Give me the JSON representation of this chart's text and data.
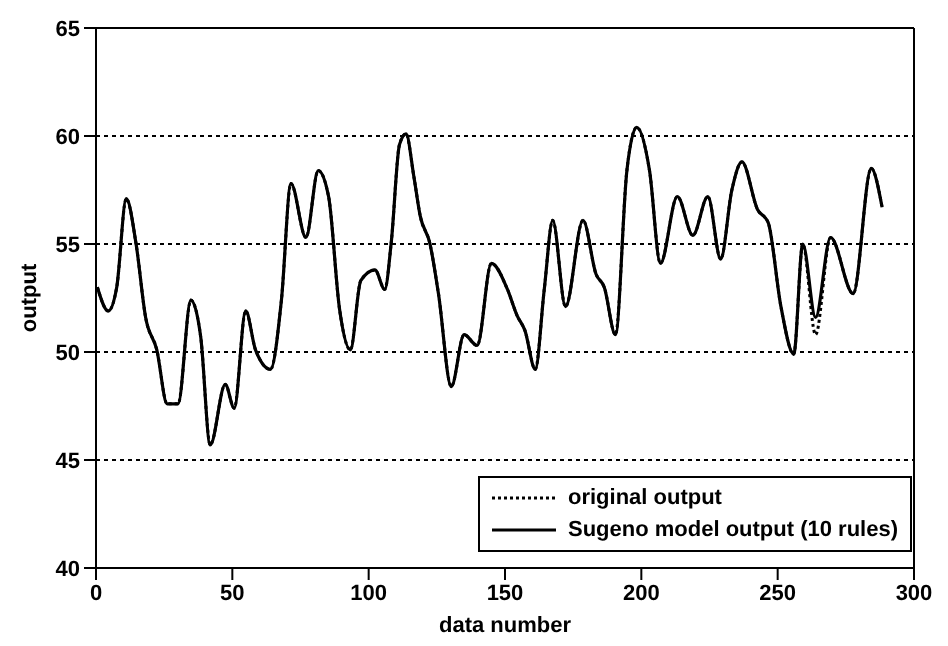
{
  "chart_data": {
    "type": "line",
    "xlabel": "data number",
    "ylabel": "output",
    "x": [
      0.5,
      4.5,
      7.6,
      11.1,
      14.7,
      18.2,
      22.3,
      26.1,
      30.1,
      34.8,
      38.4,
      41.9,
      47.4,
      50.7,
      54.9,
      58.5,
      64,
      68,
      71.5,
      77,
      81.5,
      85.3,
      89.3,
      93.3,
      97.1,
      102.3,
      105.9,
      108.3,
      111.3,
      113.7,
      116.6,
      118.9,
      122.5,
      125.6,
      130.3,
      135,
      139.8,
      145,
      150.9,
      154.4,
      157.3,
      161.1,
      164.4,
      167.5,
      172.2,
      178.6,
      183.4,
      186.4,
      190.5,
      194.7,
      198.3,
      203,
      207,
      213.2,
      218.9,
      224.4,
      229.1,
      233.2,
      236.9,
      242.6,
      246.5,
      251.2,
      255.9,
      259.2,
      263.9,
      269.4,
      277.7,
      284.3,
      288.3
    ],
    "series": [
      {
        "name": "original output",
        "color": "#000000",
        "line_style": "dotted",
        "values": [
          53.0,
          51.9,
          53.0,
          57.1,
          55.0,
          51.6,
          50.1,
          47.6,
          47.6,
          52.4,
          50.7,
          45.7,
          48.5,
          47.4,
          51.9,
          50.1,
          49.2,
          52.4,
          57.8,
          55.3,
          58.4,
          57.2,
          52.0,
          50.1,
          53.3,
          53.8,
          52.9,
          55.1,
          59.6,
          60.1,
          58.1,
          56.3,
          55.0,
          52.7,
          48.4,
          50.8,
          50.3,
          54.1,
          52.9,
          51.7,
          51.0,
          49.2,
          52.9,
          56.1,
          52.1,
          56.1,
          53.6,
          53.0,
          50.8,
          58.4,
          60.4,
          58.4,
          54.1,
          57.2,
          55.4,
          57.2,
          54.3,
          57.5,
          58.8,
          56.6,
          56.0,
          52.1,
          49.9,
          55.0,
          50.8,
          55.3,
          52.7,
          58.5,
          56.7
        ]
      },
      {
        "name": "Sugeno model output (10 rules)",
        "color": "#000000",
        "line_style": "solid",
        "values": [
          53.0,
          51.9,
          53.0,
          57.1,
          55.0,
          51.6,
          50.1,
          47.6,
          47.6,
          52.4,
          50.7,
          45.7,
          48.5,
          47.4,
          51.9,
          50.1,
          49.2,
          52.4,
          57.8,
          55.3,
          58.4,
          57.2,
          52.0,
          50.1,
          53.3,
          53.8,
          52.9,
          55.1,
          59.6,
          60.1,
          58.1,
          56.3,
          55.0,
          52.7,
          48.4,
          50.8,
          50.3,
          54.1,
          52.9,
          51.7,
          51.0,
          49.2,
          52.9,
          56.1,
          52.1,
          56.1,
          53.6,
          53.0,
          50.8,
          58.4,
          60.4,
          58.4,
          54.1,
          57.2,
          55.4,
          57.2,
          54.3,
          57.5,
          58.8,
          56.6,
          56.0,
          52.1,
          49.9,
          55.0,
          51.6,
          55.3,
          52.7,
          58.5,
          56.7
        ]
      }
    ],
    "xlim": [
      0,
      300
    ],
    "xticks": [
      0,
      50,
      100,
      150,
      200,
      250,
      300
    ],
    "ylim": [
      40,
      65
    ],
    "yticks": [
      40,
      45,
      50,
      55,
      60,
      65
    ],
    "grid": "y",
    "legend": "bottom right",
    "marker": "none"
  }
}
